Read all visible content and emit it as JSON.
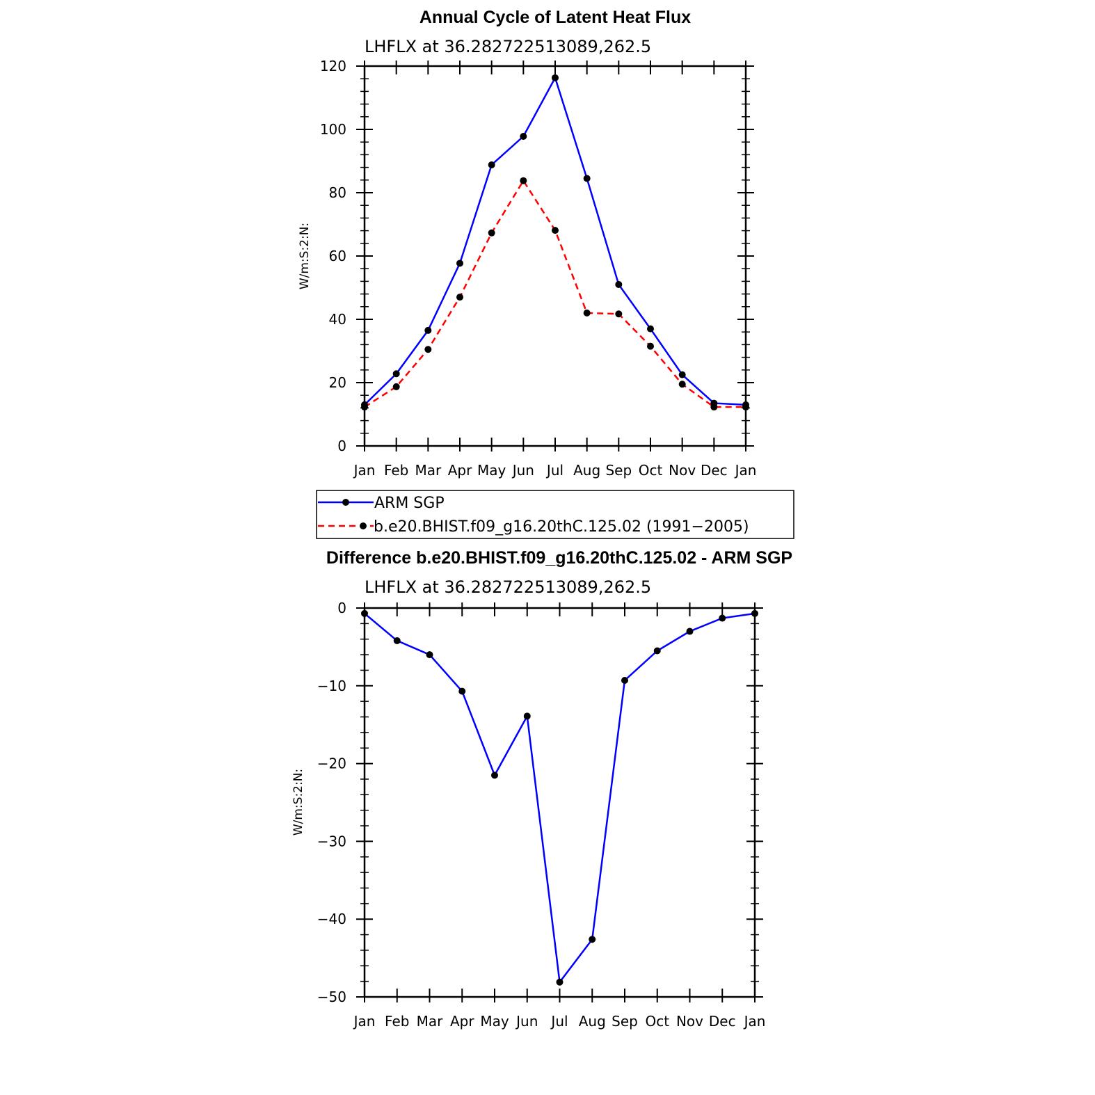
{
  "chart_data": [
    {
      "type": "line",
      "title": "Annual Cycle of Latent Heat Flux",
      "subtitle": "LHFLX  at  36.282722513089,262.5",
      "ylabel": "W/m:S:2:N:",
      "xlabel": "",
      "ylim": [
        0,
        120
      ],
      "y_ticks": [
        0,
        20,
        40,
        60,
        80,
        100,
        120
      ],
      "categories": [
        "Jan",
        "Feb",
        "Mar",
        "Apr",
        "May",
        "Jun",
        "Jul",
        "Aug",
        "Sep",
        "Oct",
        "Nov",
        "Dec",
        "Jan"
      ],
      "series": [
        {
          "name": "ARM SGP",
          "color": "#0000ff",
          "dash": "solid",
          "values": [
            13.0,
            22.8,
            36.5,
            57.7,
            88.8,
            97.8,
            116.3,
            84.5,
            51.0,
            37.0,
            22.5,
            13.5,
            13.0
          ]
        },
        {
          "name": "b.e20.BHIST.f09_g16.20thC.125.02 (1991-2005)",
          "color": "#ff0000",
          "dash": "dashed",
          "values": [
            12.3,
            18.7,
            30.5,
            47.0,
            67.3,
            83.8,
            68.1,
            42.0,
            41.7,
            31.5,
            19.5,
            12.3,
            12.3
          ]
        }
      ],
      "legend": {
        "position": "below",
        "labels": [
          "ARM SGP",
          "b.e20.BHIST.f09_g16.20thC.125.02 (1991−2005)"
        ]
      },
      "grid": false
    },
    {
      "type": "line",
      "title": "Difference b.e20.BHIST.f09_g16.20thC.125.02 - ARM SGP",
      "subtitle": "LHFLX  at  36.282722513089,262.5",
      "ylabel": "W/m:S:2:N:",
      "xlabel": "",
      "ylim": [
        -50,
        0
      ],
      "y_ticks": [
        0,
        -10,
        -20,
        -30,
        -40,
        -50
      ],
      "y_tick_labels": [
        "0",
        "−10",
        "−20",
        "−30",
        "−40",
        "−50"
      ],
      "categories": [
        "Jan",
        "Feb",
        "Mar",
        "Apr",
        "May",
        "Jun",
        "Jul",
        "Aug",
        "Sep",
        "Oct",
        "Nov",
        "Dec",
        "Jan"
      ],
      "series": [
        {
          "color": "#0000ff",
          "dash": "solid",
          "values": [
            -0.7,
            -4.2,
            -6.0,
            -10.7,
            -21.5,
            -13.9,
            -48.1,
            -42.6,
            -9.3,
            -5.5,
            -3.0,
            -1.3,
            -0.7
          ]
        }
      ],
      "grid": false
    }
  ]
}
